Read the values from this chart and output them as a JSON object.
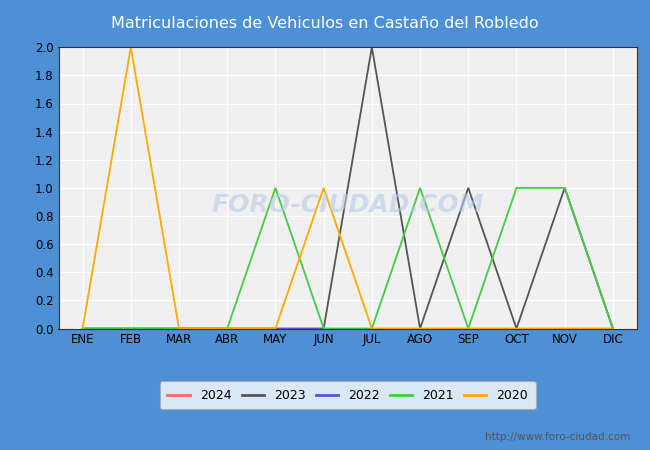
{
  "title": "Matriculaciones de Vehiculos en Castaño del Robledo",
  "title_bg": "#4d90d5",
  "title_color": "white",
  "months": [
    "ENE",
    "FEB",
    "MAR",
    "ABR",
    "MAY",
    "JUN",
    "JUL",
    "AGO",
    "SEP",
    "OCT",
    "NOV",
    "DIC"
  ],
  "series": {
    "2024": {
      "color": "#ff6666",
      "values": [
        0,
        0,
        0,
        0,
        0,
        0,
        0,
        0,
        0,
        0,
        0,
        0
      ]
    },
    "2023": {
      "color": "#555555",
      "values": [
        0,
        0,
        0,
        0,
        0,
        0,
        2,
        0,
        1,
        0,
        1,
        0
      ]
    },
    "2022": {
      "color": "#5555cc",
      "values": [
        0,
        0,
        0,
        0,
        0,
        0,
        0,
        0,
        0,
        0,
        0,
        0
      ]
    },
    "2021": {
      "color": "#44cc44",
      "values": [
        0,
        0,
        0,
        0,
        1,
        0,
        0,
        1,
        0,
        1,
        1,
        0
      ]
    },
    "2020": {
      "color": "#ffaa00",
      "values": [
        0,
        2,
        0,
        0,
        0,
        1,
        0,
        0,
        0,
        0,
        0,
        0
      ]
    }
  },
  "ylim": [
    0,
    2.0
  ],
  "yticks": [
    0.0,
    0.2,
    0.4,
    0.6,
    0.8,
    1.0,
    1.2,
    1.4,
    1.6,
    1.8,
    2.0
  ],
  "outer_bg": "#4d90d5",
  "plot_bg": "#f0f0f0",
  "bottom_bg": "#ffffff",
  "grid_color": "#dddddd",
  "watermark": "FORO-CIUDAD.COM",
  "url": "http://www.foro-ciudad.com",
  "legend_order": [
    "2024",
    "2023",
    "2022",
    "2021",
    "2020"
  ]
}
